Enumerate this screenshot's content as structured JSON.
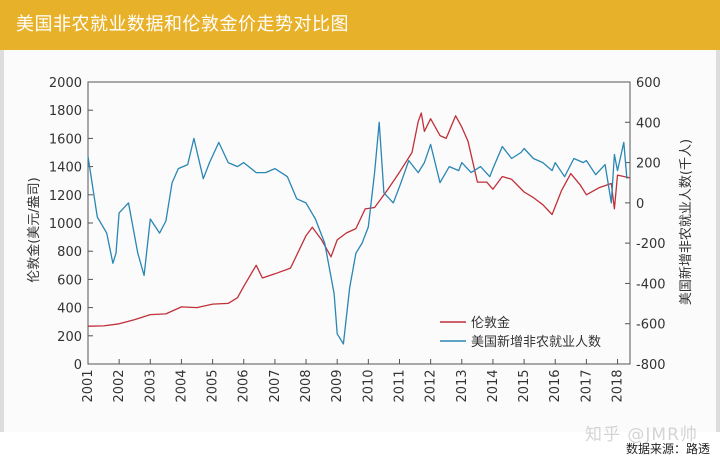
{
  "header": {
    "title": "美国非农就业数据和伦敦金价走势对比图"
  },
  "footer": {
    "source": "数据来源：路透",
    "watermark": "知乎 @JMR帅"
  },
  "colors": {
    "gold": "#c0303a",
    "payrolls": "#2a86b3",
    "header": "#e8b12a"
  },
  "chart_data": {
    "type": "line",
    "xlabel": "",
    "x_ticks": [
      "2001",
      "2002",
      "2003",
      "2004",
      "2005",
      "2006",
      "2007",
      "2008",
      "2009",
      "2010",
      "2011",
      "2012",
      "2013",
      "2014",
      "2015",
      "2016",
      "2017",
      "2018"
    ],
    "xlim": [
      2001,
      2018.4
    ],
    "y_left": {
      "label": "伦敦金(美元/盎司)",
      "lim": [
        0,
        2000
      ],
      "ticks": [
        "0",
        "200",
        "400",
        "600",
        "800",
        "1000",
        "1200",
        "1400",
        "1600",
        "1800",
        "2000"
      ]
    },
    "y_right": {
      "label": "美国新增非农就业人数(千人)",
      "lim": [
        -800,
        600
      ],
      "ticks": [
        "-800",
        "-600",
        "-400",
        "-200",
        "0",
        "200",
        "400",
        "600"
      ]
    },
    "legend": {
      "placement": "lower-right",
      "entries": [
        "伦敦金",
        "美国新增非农就业人数"
      ]
    },
    "grid": false,
    "series": [
      {
        "name": "伦敦金",
        "axis": "left",
        "points": [
          [
            2001.0,
            268
          ],
          [
            2001.5,
            270
          ],
          [
            2002.0,
            285
          ],
          [
            2002.5,
            315
          ],
          [
            2003.0,
            350
          ],
          [
            2003.5,
            355
          ],
          [
            2004.0,
            405
          ],
          [
            2004.5,
            400
          ],
          [
            2005.0,
            425
          ],
          [
            2005.5,
            430
          ],
          [
            2005.8,
            470
          ],
          [
            2006.0,
            550
          ],
          [
            2006.4,
            700
          ],
          [
            2006.6,
            610
          ],
          [
            2007.0,
            640
          ],
          [
            2007.5,
            680
          ],
          [
            2008.0,
            910
          ],
          [
            2008.2,
            970
          ],
          [
            2008.5,
            880
          ],
          [
            2008.8,
            760
          ],
          [
            2009.0,
            880
          ],
          [
            2009.3,
            930
          ],
          [
            2009.6,
            960
          ],
          [
            2009.9,
            1100
          ],
          [
            2010.2,
            1110
          ],
          [
            2010.6,
            1230
          ],
          [
            2011.0,
            1360
          ],
          [
            2011.4,
            1500
          ],
          [
            2011.6,
            1720
          ],
          [
            2011.7,
            1780
          ],
          [
            2011.8,
            1650
          ],
          [
            2012.0,
            1740
          ],
          [
            2012.3,
            1620
          ],
          [
            2012.5,
            1600
          ],
          [
            2012.8,
            1760
          ],
          [
            2013.0,
            1680
          ],
          [
            2013.2,
            1580
          ],
          [
            2013.5,
            1290
          ],
          [
            2013.8,
            1290
          ],
          [
            2014.0,
            1240
          ],
          [
            2014.3,
            1330
          ],
          [
            2014.6,
            1310
          ],
          [
            2015.0,
            1220
          ],
          [
            2015.3,
            1180
          ],
          [
            2015.6,
            1130
          ],
          [
            2015.9,
            1060
          ],
          [
            2016.2,
            1230
          ],
          [
            2016.5,
            1350
          ],
          [
            2016.8,
            1270
          ],
          [
            2017.0,
            1200
          ],
          [
            2017.4,
            1250
          ],
          [
            2017.8,
            1280
          ],
          [
            2017.9,
            1100
          ],
          [
            2018.0,
            1340
          ],
          [
            2018.2,
            1330
          ],
          [
            2018.4,
            1320
          ]
        ]
      },
      {
        "name": "美国新增非农就业人数",
        "axis": "right",
        "points": [
          [
            2001.0,
            230
          ],
          [
            2001.3,
            -70
          ],
          [
            2001.6,
            -150
          ],
          [
            2001.8,
            -300
          ],
          [
            2001.9,
            -250
          ],
          [
            2002.0,
            -50
          ],
          [
            2002.3,
            0
          ],
          [
            2002.6,
            -250
          ],
          [
            2002.8,
            -360
          ],
          [
            2003.0,
            -80
          ],
          [
            2003.3,
            -150
          ],
          [
            2003.5,
            -90
          ],
          [
            2003.7,
            100
          ],
          [
            2003.9,
            170
          ],
          [
            2004.2,
            190
          ],
          [
            2004.4,
            320
          ],
          [
            2004.7,
            120
          ],
          [
            2004.9,
            200
          ],
          [
            2005.2,
            300
          ],
          [
            2005.5,
            200
          ],
          [
            2005.8,
            180
          ],
          [
            2006.0,
            200
          ],
          [
            2006.4,
            150
          ],
          [
            2006.7,
            150
          ],
          [
            2007.0,
            170
          ],
          [
            2007.4,
            130
          ],
          [
            2007.7,
            20
          ],
          [
            2008.0,
            0
          ],
          [
            2008.3,
            -80
          ],
          [
            2008.6,
            -200
          ],
          [
            2008.9,
            -450
          ],
          [
            2009.0,
            -650
          ],
          [
            2009.2,
            -700
          ],
          [
            2009.4,
            -420
          ],
          [
            2009.6,
            -250
          ],
          [
            2009.8,
            -200
          ],
          [
            2010.0,
            -120
          ],
          [
            2010.2,
            150
          ],
          [
            2010.35,
            400
          ],
          [
            2010.5,
            50
          ],
          [
            2010.8,
            0
          ],
          [
            2011.0,
            80
          ],
          [
            2011.3,
            210
          ],
          [
            2011.6,
            150
          ],
          [
            2011.8,
            200
          ],
          [
            2012.0,
            290
          ],
          [
            2012.3,
            100
          ],
          [
            2012.6,
            180
          ],
          [
            2012.9,
            160
          ],
          [
            2013.0,
            200
          ],
          [
            2013.3,
            150
          ],
          [
            2013.6,
            180
          ],
          [
            2013.9,
            130
          ],
          [
            2014.0,
            170
          ],
          [
            2014.3,
            280
          ],
          [
            2014.6,
            220
          ],
          [
            2014.9,
            250
          ],
          [
            2015.0,
            270
          ],
          [
            2015.3,
            220
          ],
          [
            2015.6,
            200
          ],
          [
            2015.9,
            160
          ],
          [
            2016.0,
            200
          ],
          [
            2016.3,
            130
          ],
          [
            2016.6,
            220
          ],
          [
            2016.9,
            200
          ],
          [
            2017.0,
            210
          ],
          [
            2017.3,
            140
          ],
          [
            2017.6,
            190
          ],
          [
            2017.8,
            0
          ],
          [
            2017.9,
            240
          ],
          [
            2018.0,
            160
          ],
          [
            2018.2,
            300
          ],
          [
            2018.3,
            120
          ]
        ]
      }
    ]
  }
}
